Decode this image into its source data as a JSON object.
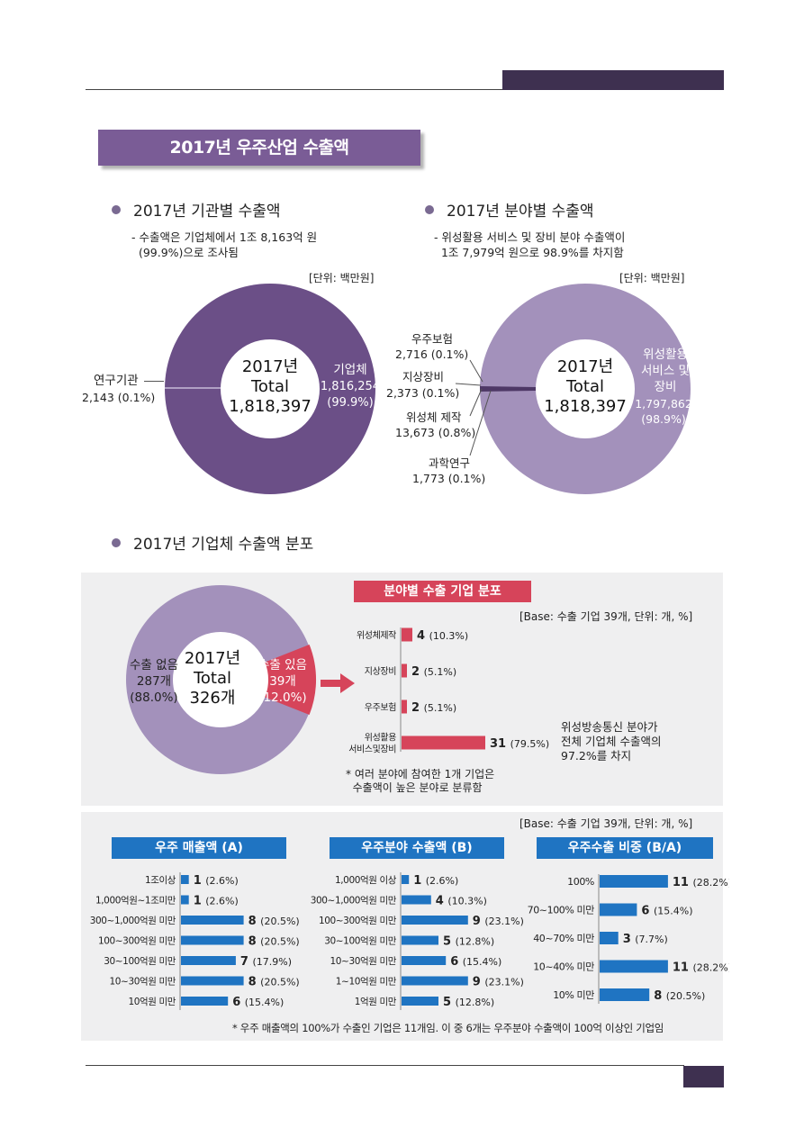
{
  "title": "2017년 우주산업 수출액",
  "section_org": {
    "heading": "2017년 기관별 수출액",
    "note": "- 수출액은 기업체에서 1조 8,163억 원\n  (99.9%)으로 조사됨",
    "unit": "[단위: 백만원]",
    "center": "2017년\nTotal\n1,818,397",
    "slices": [
      {
        "label": "기업체",
        "value": "1,816,254",
        "pct": "(99.9%)",
        "share": 99.9,
        "color": "#6b4f87"
      },
      {
        "label": "연구기관",
        "value": "2,143",
        "pct": "(0.1%)",
        "share": 0.1,
        "color": "#b9a8cc"
      }
    ]
  },
  "section_field": {
    "heading": "2017년 분야별 수출액",
    "note": "- 위성활용 서비스 및 장비 분야 수출액이\n  1조 7,979억 원으로 98.9%를 차지함",
    "unit": "[단위: 백만원]",
    "center": "2017년\nTotal\n1,818,397",
    "slices": [
      {
        "label": "위성활용\n서비스 및\n장비",
        "value": "1,797,862",
        "pct": "(98.9%)",
        "share": 98.9,
        "color": "#a391bb"
      },
      {
        "label": "우주보험",
        "value": "2,716 (0.1%)",
        "share": 0.1,
        "color": "#6b4f87"
      },
      {
        "label": "지상장비",
        "value": "2,373 (0.1%)",
        "share": 0.1,
        "color": "#4e3866"
      },
      {
        "label": "위성체 제작",
        "value": "13,673 (0.8%)",
        "share": 0.8,
        "color": "#5a4375"
      },
      {
        "label": "과학연구",
        "value": "1,773 (0.1%)",
        "share": 0.1,
        "color": "#7d6898"
      }
    ]
  },
  "section_dist": {
    "heading": "2017년 기업체 수출액 분포",
    "donut": {
      "center": "2017년\nTotal\n326개",
      "no_export": {
        "label": "수출 없음",
        "count": "287개",
        "pct": "(88.0%)",
        "share": 88.0,
        "color": "#a391bb"
      },
      "export": {
        "label": "수출 있음",
        "count": "39개",
        "pct": "(12.0%)",
        "share": 12.0,
        "color": "#d6445a"
      }
    },
    "field_chart": {
      "title": "분야별 수출 기업 분포",
      "base": "[Base: 수출 기업 39개, 단위: 개, %]",
      "side_note": "위성방송통신 분야가\n전체 기업체 수출액의\n97.2%를 차지",
      "footnote": "* 여러 분야에 참여한 1개 기업은\n  수출액이 높은 분야로 분류함"
    }
  },
  "bottom_base": "[Base: 수출 기업 39개, 단위: 개, %]",
  "bottom_footnote": "* 우주 매출액의 100%가 수출인 기업은 11개임. 이 중 6개는 우주분야 수출액이 100억 이상인 기업임",
  "chart_data": [
    {
      "type": "bar",
      "title": "분야별 수출 기업 분포",
      "categories": [
        "위성체제작",
        "지상장비",
        "우주보험",
        "위성활용 서비스및장비"
      ],
      "values": [
        4,
        2,
        2,
        31
      ],
      "percents": [
        "(10.3%)",
        "(5.1%)",
        "(5.1%)",
        "(79.5%)"
      ],
      "color": "#d6445a"
    },
    {
      "type": "bar",
      "title": "우주 매출액 (A)",
      "categories": [
        "1조이상",
        "1,000억원~1조미만",
        "300~1,000억원 미만",
        "100~300억원 미만",
        "30~100억원 미만",
        "10~30억원 미만",
        "10억원 미만"
      ],
      "values": [
        1,
        1,
        8,
        8,
        7,
        8,
        6
      ],
      "percents": [
        "(2.6%)",
        "(2.6%)",
        "(20.5%)",
        "(20.5%)",
        "(17.9%)",
        "(20.5%)",
        "(15.4%)"
      ],
      "color": "#1f74c2"
    },
    {
      "type": "bar",
      "title": "우주분야 수출액 (B)",
      "categories": [
        "1,000억원 이상",
        "300~1,000억원 미만",
        "100~300억원 미만",
        "30~100억원 미만",
        "10~30억원 미만",
        "1~10억원 미만",
        "1억원 미만"
      ],
      "values": [
        1,
        4,
        9,
        5,
        6,
        9,
        5
      ],
      "percents": [
        "(2.6%)",
        "(10.3%)",
        "(23.1%)",
        "(12.8%)",
        "(15.4%)",
        "(23.1%)",
        "(12.8%)"
      ],
      "color": "#1f74c2"
    },
    {
      "type": "bar",
      "title": "우주수출 비중 (B/A)",
      "categories": [
        "100%",
        "70~100% 미만",
        "40~70% 미만",
        "10~40% 미만",
        "10% 미만"
      ],
      "values": [
        11,
        6,
        3,
        11,
        8
      ],
      "percents": [
        "(28.2%)",
        "(15.4%)",
        "(7.7%)",
        "(28.2%)",
        "(20.5%)"
      ],
      "color": "#1f74c2"
    }
  ]
}
